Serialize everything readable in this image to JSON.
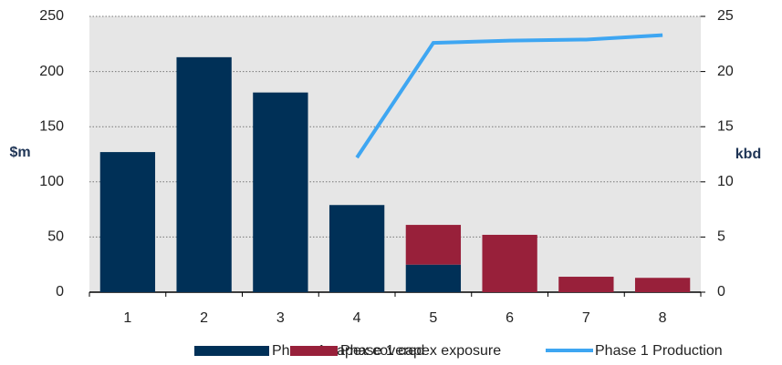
{
  "chart_data": {
    "type": "bar",
    "stacked": true,
    "categories": [
      "1",
      "2",
      "3",
      "4",
      "5",
      "6",
      "7",
      "8"
    ],
    "series": [
      {
        "name": "Phase 1 capex covered",
        "color": "#003057",
        "values": [
          127,
          213,
          181,
          79,
          25,
          0,
          0,
          0
        ]
      },
      {
        "name": "Phase 1 capex exposure",
        "color": "#98203a",
        "values": [
          0,
          0,
          0,
          0,
          36,
          52,
          14,
          13
        ]
      },
      {
        "name": "Phase 1 Production",
        "type": "line",
        "axis": "y2",
        "color": "#3ea6f2",
        "values": [
          null,
          null,
          null,
          12.2,
          22.6,
          22.8,
          22.9,
          23.3
        ]
      }
    ],
    "ylabel": "$m",
    "y2label": "kbd",
    "ylim": [
      0,
      250
    ],
    "yticks": [
      0,
      50,
      100,
      150,
      200,
      250
    ],
    "y2lim": [
      0,
      25
    ],
    "y2ticks": [
      0,
      5,
      10,
      15,
      20,
      25
    ],
    "grid": true,
    "legend": "bottom"
  }
}
